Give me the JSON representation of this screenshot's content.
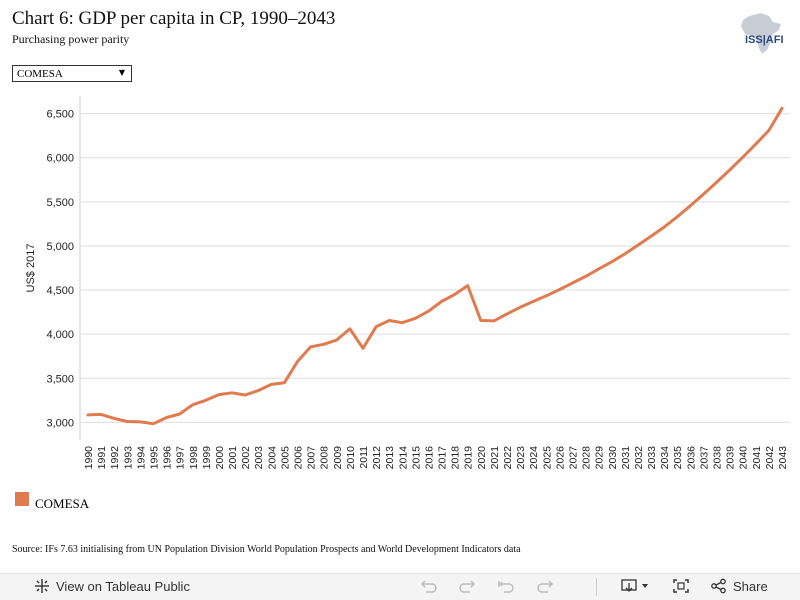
{
  "header": {
    "title": "Chart 6: GDP per capita in CP, 1990–2043",
    "subtitle": "Purchasing power parity",
    "logo_text": "ISS|AFI"
  },
  "filter": {
    "selected": "COMESA"
  },
  "legend": {
    "items": [
      {
        "label": "COMESA",
        "color": "#e07a4f"
      }
    ]
  },
  "source": "Source: IFs 7.63 initialising from UN Population Division World Population Prospects and World Development Indicators data",
  "toolbar": {
    "view_label": "View on Tableau Public",
    "share_label": "Share",
    "icons": [
      "tableau-icon",
      "undo-icon",
      "redo-icon",
      "revert-icon",
      "refresh-icon",
      "download-icon",
      "fullscreen-icon",
      "share-icon"
    ]
  },
  "chart_data": {
    "type": "line",
    "title": "Chart 6: GDP per capita in CP, 1990–2043",
    "subtitle": "Purchasing power parity",
    "xlabel": "",
    "ylabel": "US$ 2017",
    "ylim": [
      2800,
      6700
    ],
    "yticks": [
      3000,
      3500,
      4000,
      4500,
      5000,
      5500,
      6000,
      6500
    ],
    "ytick_labels": [
      "3,000",
      "3,500",
      "4,000",
      "4,500",
      "5,000",
      "5,500",
      "6,000",
      "6,500"
    ],
    "grid": true,
    "legend_position": "bottom-left",
    "x": [
      1990,
      1991,
      1992,
      1993,
      1994,
      1995,
      1996,
      1997,
      1998,
      1999,
      2000,
      2001,
      2002,
      2003,
      2004,
      2005,
      2006,
      2007,
      2008,
      2009,
      2010,
      2011,
      2012,
      2013,
      2014,
      2015,
      2016,
      2017,
      2018,
      2019,
      2020,
      2021,
      2022,
      2023,
      2024,
      2025,
      2026,
      2027,
      2028,
      2029,
      2030,
      2031,
      2032,
      2033,
      2034,
      2035,
      2036,
      2037,
      2038,
      2039,
      2040,
      2041,
      2042,
      2043
    ],
    "series": [
      {
        "name": "COMESA",
        "color": "#e07a4f",
        "values": [
          3085,
          3090,
          3045,
          3010,
          3005,
          2985,
          3055,
          3095,
          3200,
          3250,
          3315,
          3335,
          3310,
          3360,
          3430,
          3450,
          3690,
          3855,
          3885,
          3935,
          4060,
          3840,
          4085,
          4155,
          4130,
          4180,
          4260,
          4370,
          4450,
          4550,
          4155,
          4150,
          4230,
          4305,
          4370,
          4435,
          4505,
          4580,
          4655,
          4740,
          4820,
          4910,
          5010,
          5110,
          5215,
          5330,
          5455,
          5585,
          5720,
          5860,
          6005,
          6155,
          6310,
          6560
        ]
      }
    ]
  }
}
